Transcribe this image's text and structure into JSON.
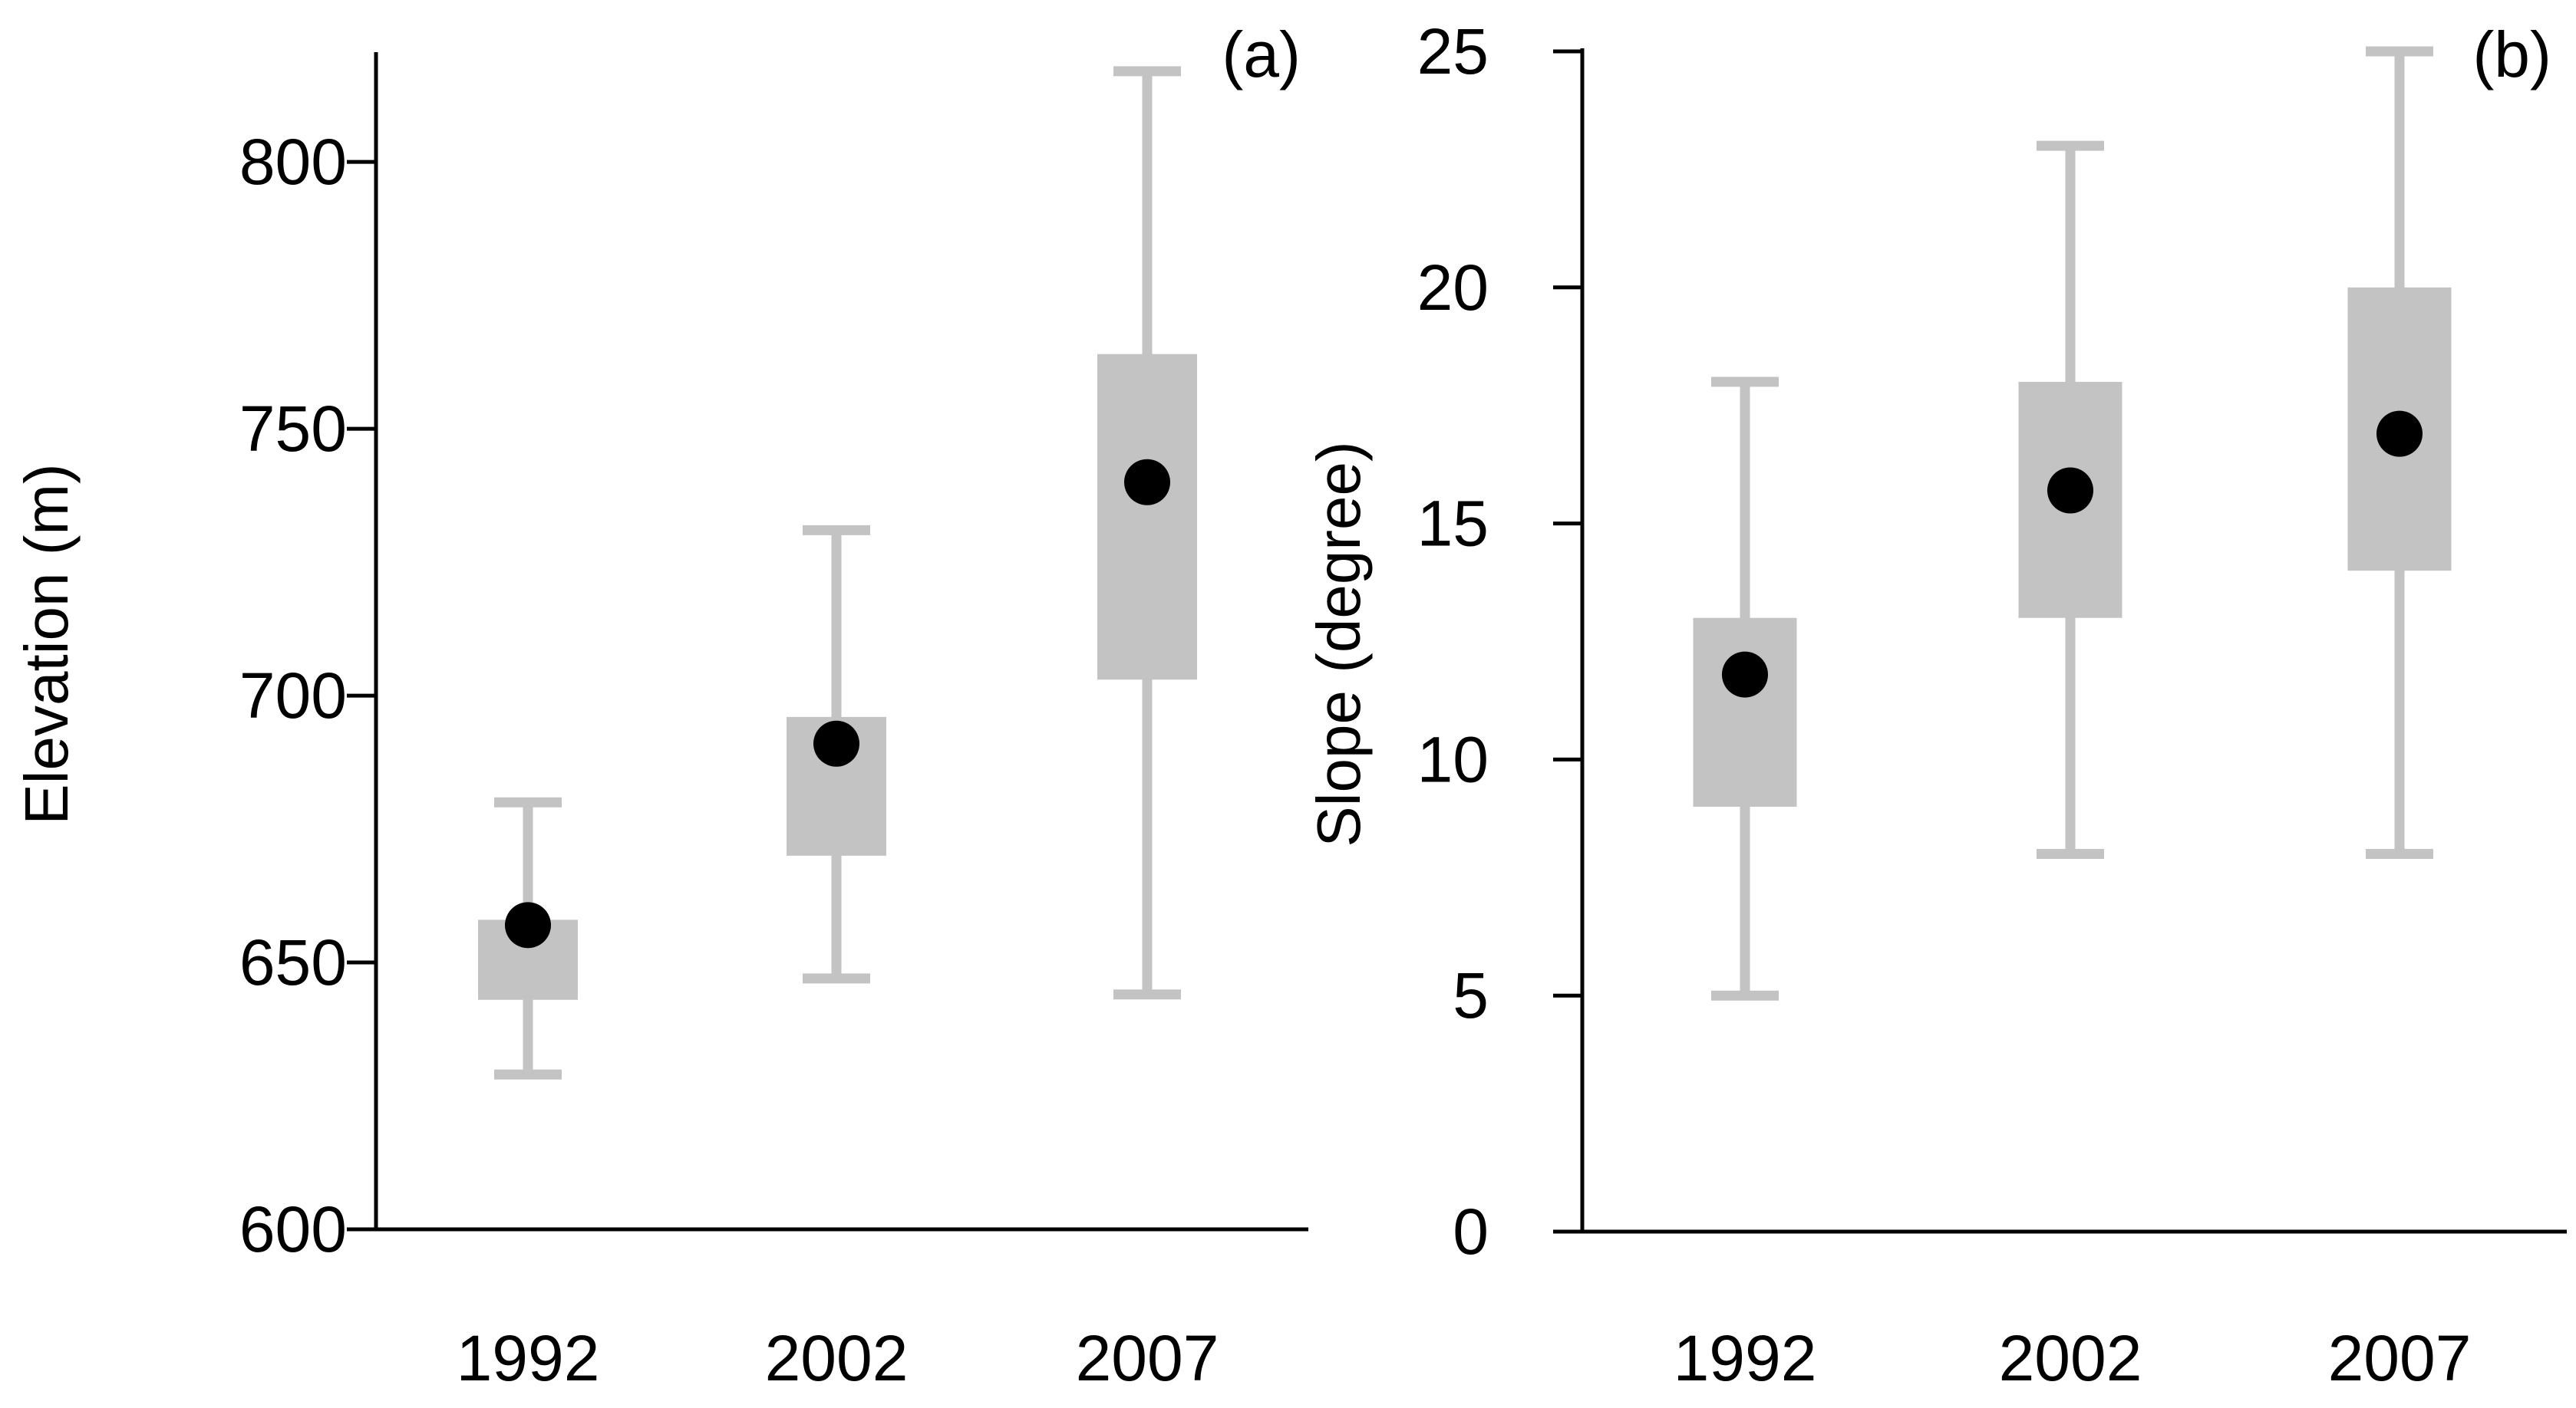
{
  "chart_data": [
    {
      "type": "box",
      "panel_label": "(a)",
      "ylabel": "Elevation (m)",
      "ylim": [
        600,
        820
      ],
      "yticks": [
        600,
        650,
        700,
        750,
        800
      ],
      "categories": [
        "1992",
        "2002",
        "2007"
      ],
      "boxes": [
        {
          "min": 629,
          "q1": 643,
          "q3": 658,
          "max": 680,
          "mean": 657
        },
        {
          "min": 647,
          "q1": 670,
          "q3": 696,
          "max": 731,
          "mean": 691
        },
        {
          "min": 644,
          "q1": 703,
          "q3": 764,
          "max": 817,
          "mean": 740
        }
      ],
      "box_color": "#c3c3c3",
      "mean_color": "#000000"
    },
    {
      "type": "box",
      "panel_label": "(b)",
      "ylabel": "Slope (degree)",
      "ylim": [
        0,
        25
      ],
      "yticks": [
        0,
        5,
        10,
        15,
        20,
        25
      ],
      "categories": [
        "1992",
        "2002",
        "2007"
      ],
      "boxes": [
        {
          "min": 5,
          "q1": 9,
          "q3": 13,
          "max": 18,
          "mean": 11.8
        },
        {
          "min": 8,
          "q1": 13,
          "q3": 18,
          "max": 23,
          "mean": 15.7
        },
        {
          "min": 8,
          "q1": 14,
          "q3": 20,
          "max": 25,
          "mean": 16.9
        }
      ],
      "box_color": "#c3c3c3",
      "mean_color": "#000000"
    }
  ]
}
